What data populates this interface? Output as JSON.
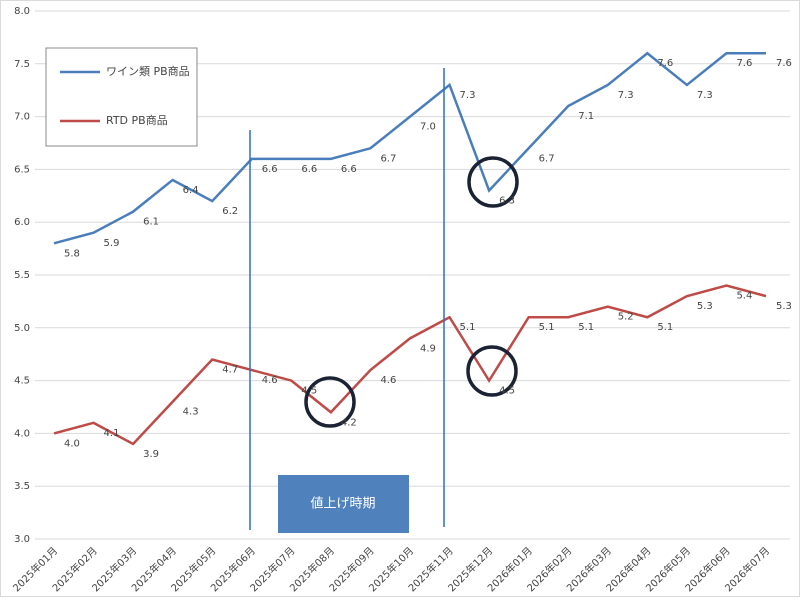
{
  "chart_data": {
    "type": "line",
    "categories": [
      "2025年01月",
      "2025年02月",
      "2025年03月",
      "2025年04月",
      "2025年05月",
      "2025年06月",
      "2025年07月",
      "2025年08月",
      "2025年09月",
      "2025年10月",
      "2025年11月",
      "2025年12月",
      "2026年01月",
      "2026年02月",
      "2026年03月",
      "2026年04月",
      "2026年05月",
      "2026年06月",
      "2026年07月"
    ],
    "series": [
      {
        "name": "ワイン類 PB商品",
        "color": "#4a7ebb",
        "values": [
          5.8,
          5.9,
          6.1,
          6.4,
          6.2,
          6.6,
          6.6,
          6.6,
          6.7,
          7.0,
          7.3,
          6.3,
          6.7,
          7.1,
          7.3,
          7.6,
          7.3,
          7.6,
          7.6
        ],
        "value_labels": [
          "5.8",
          "5.9",
          "6.1",
          "6.4",
          "6.2",
          "6.6",
          "6.6",
          "6.6",
          "6.7",
          "7.0",
          "7.3",
          "6.3",
          "6.7",
          "7.1",
          "7.3",
          "7.6",
          "7.3",
          "7.6",
          "7.6"
        ]
      },
      {
        "name": "RTD PB商品",
        "color": "#be4b48",
        "values": [
          4.0,
          4.1,
          3.9,
          4.3,
          4.7,
          4.6,
          4.5,
          4.2,
          4.6,
          4.9,
          5.1,
          4.5,
          5.1,
          5.1,
          5.2,
          5.1,
          5.3,
          5.4,
          5.3
        ],
        "value_labels": [
          "4.0",
          "4.1",
          "3.9",
          "4.3",
          "4.7",
          "4.6",
          "4.5",
          "4.2",
          "4.6",
          "4.9",
          "5.1",
          "4.5",
          "5.1",
          "5.1",
          "5.2",
          "5.1",
          "5.3",
          "5.4",
          "5.3"
        ]
      }
    ],
    "ylim": [
      3.0,
      8.0
    ],
    "yticks": [
      {
        "value": 3,
        "label": "3.0"
      },
      3.5,
      {
        "value": 4,
        "label": "4.0"
      },
      4.5,
      {
        "value": 5,
        "label": "5.0"
      },
      5.5,
      {
        "value": 6,
        "label": "6.0"
      },
      6.5,
      {
        "value": 7,
        "label": "7.0"
      },
      7.5,
      {
        "value": 8,
        "label": "8.0"
      }
    ],
    "grid": true,
    "annotation": "値上げ時期"
  }
}
